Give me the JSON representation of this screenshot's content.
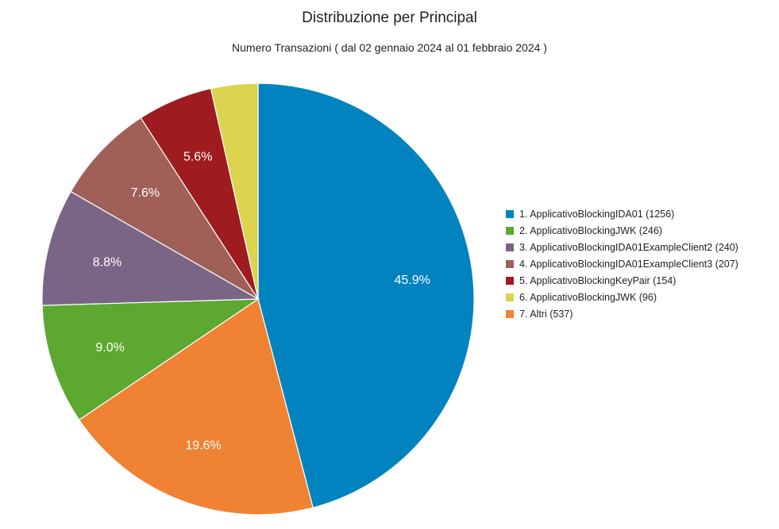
{
  "chart_data": {
    "type": "pie",
    "title": "Distribuzione per Principal",
    "subtitle": "Numero Transazioni ( dal 02 gennaio 2024 al 01 febbraio 2024 )",
    "legend_position": "right",
    "slices": [
      {
        "label": "1. ApplicativoBlockingIDA01 (1256)",
        "value": 1256,
        "percent_label": "45.9%",
        "color": "#0083BF"
      },
      {
        "label": "2. ApplicativoBlockingJWK (246)",
        "value": 246,
        "percent_label": "9.0%",
        "color": "#5CA830"
      },
      {
        "label": "3. ApplicativoBlockingIDA01ExampleClient2 (240)",
        "value": 240,
        "percent_label": "8.8%",
        "color": "#7B6586"
      },
      {
        "label": "4. ApplicativoBlockingIDA01ExampleClient3 (207)",
        "value": 207,
        "percent_label": "7.6%",
        "color": "#A05F57"
      },
      {
        "label": "5. ApplicativoBlockingKeyPair (154)",
        "value": 154,
        "percent_label": "5.6%",
        "color": "#9E1B20"
      },
      {
        "label": "6. ApplicativoBlockingJWK (96)",
        "value": 96,
        "percent_label": "",
        "color": "#DCD34E"
      },
      {
        "label": "7. Altri (537)",
        "value": 537,
        "percent_label": "19.6%",
        "color": "#F08234"
      }
    ],
    "slice_order_clockwise_from_top": [
      0,
      6,
      1,
      2,
      3,
      4,
      5
    ]
  }
}
